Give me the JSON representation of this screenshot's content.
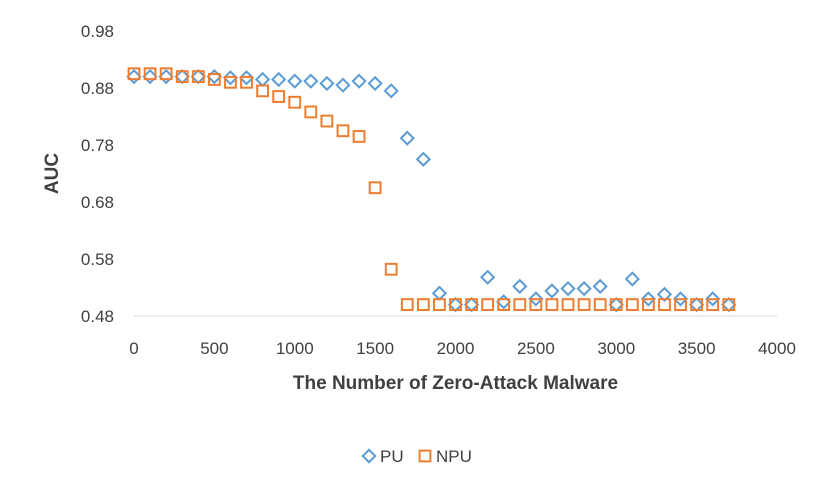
{
  "chart_data": {
    "type": "scatter",
    "title": "",
    "xlabel": "The Number of Zero-Attack Malware",
    "ylabel": "AUC",
    "xlim": [
      0,
      4000
    ],
    "ylim": [
      0.48,
      0.98
    ],
    "xticks": [
      "0",
      "500",
      "1000",
      "1500",
      "2000",
      "2500",
      "3000",
      "3500",
      "4000"
    ],
    "yticks": [
      "0.48",
      "0.58",
      "0.68",
      "0.78",
      "0.88",
      "0.98"
    ],
    "grid": false,
    "legend_position": "bottom",
    "series": [
      {
        "name": "PU",
        "marker": "diamond",
        "color": "#5B9BD5",
        "x": [
          0,
          100,
          200,
          300,
          400,
          500,
          600,
          700,
          800,
          900,
          1000,
          1100,
          1200,
          1300,
          1400,
          1500,
          1600,
          1700,
          1800,
          1900,
          2000,
          2100,
          2200,
          2300,
          2400,
          2500,
          2600,
          2700,
          2800,
          2900,
          3000,
          3100,
          3200,
          3300,
          3400,
          3500,
          3600,
          3700
        ],
        "y": [
          0.9,
          0.9,
          0.9,
          0.9,
          0.9,
          0.9,
          0.898,
          0.898,
          0.895,
          0.895,
          0.892,
          0.892,
          0.888,
          0.885,
          0.892,
          0.888,
          0.875,
          0.792,
          0.755,
          0.52,
          0.5,
          0.5,
          0.548,
          0.505,
          0.532,
          0.51,
          0.524,
          0.528,
          0.528,
          0.532,
          0.5,
          0.545,
          0.51,
          0.518,
          0.51,
          0.5,
          0.51,
          0.5
        ]
      },
      {
        "name": "NPU",
        "marker": "square",
        "color": "#ED7D31",
        "x": [
          0,
          100,
          200,
          300,
          400,
          500,
          600,
          700,
          800,
          900,
          1000,
          1100,
          1200,
          1300,
          1400,
          1500,
          1600,
          1700,
          1800,
          1900,
          2000,
          2100,
          2200,
          2300,
          2400,
          2500,
          2600,
          2700,
          2800,
          2900,
          3000,
          3100,
          3200,
          3300,
          3400,
          3500,
          3600,
          3700
        ],
        "y": [
          0.905,
          0.905,
          0.905,
          0.9,
          0.9,
          0.895,
          0.89,
          0.89,
          0.875,
          0.865,
          0.855,
          0.838,
          0.822,
          0.805,
          0.795,
          0.705,
          0.562,
          0.5,
          0.5,
          0.5,
          0.5,
          0.5,
          0.5,
          0.5,
          0.5,
          0.5,
          0.5,
          0.5,
          0.5,
          0.5,
          0.5,
          0.5,
          0.5,
          0.5,
          0.5,
          0.5,
          0.5,
          0.5
        ]
      }
    ]
  }
}
